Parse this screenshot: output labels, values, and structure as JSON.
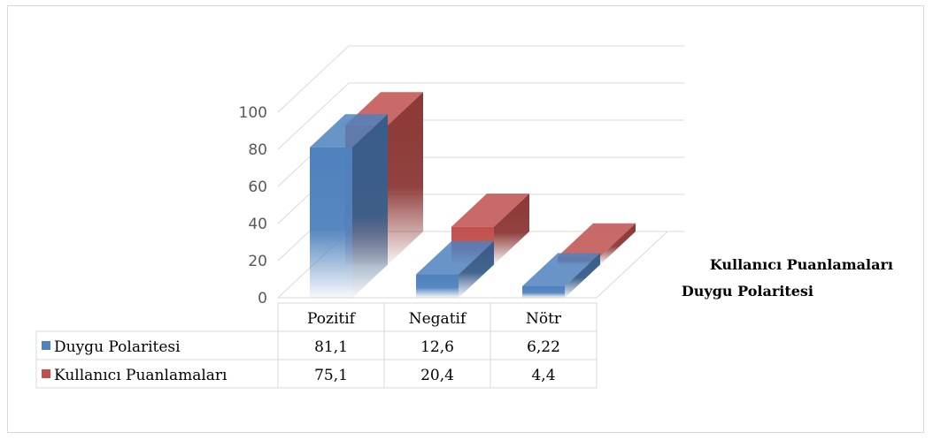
{
  "chart_data": {
    "type": "bar",
    "categories": [
      "Pozitif",
      "Negatif",
      "Nötr"
    ],
    "series": [
      {
        "name": "Duygu Polaritesi",
        "values": [
          81.1,
          12.6,
          6.22
        ],
        "value_labels": [
          "81,1",
          "12,6",
          "6,22"
        ],
        "color": "#4f81bd"
      },
      {
        "name": "Kullanıcı Puanlamaları",
        "values": [
          75.1,
          20.4,
          4.4
        ],
        "value_labels": [
          "75,1",
          "20,4",
          "4,4"
        ],
        "color": "#c0504d"
      }
    ],
    "yticks": [
      0,
      20,
      40,
      60,
      80,
      100
    ],
    "ylim": [
      0,
      100
    ],
    "title": "",
    "xlabel": "",
    "ylabel": "",
    "grid": true,
    "legend": "data-table",
    "style": "3d-column"
  }
}
